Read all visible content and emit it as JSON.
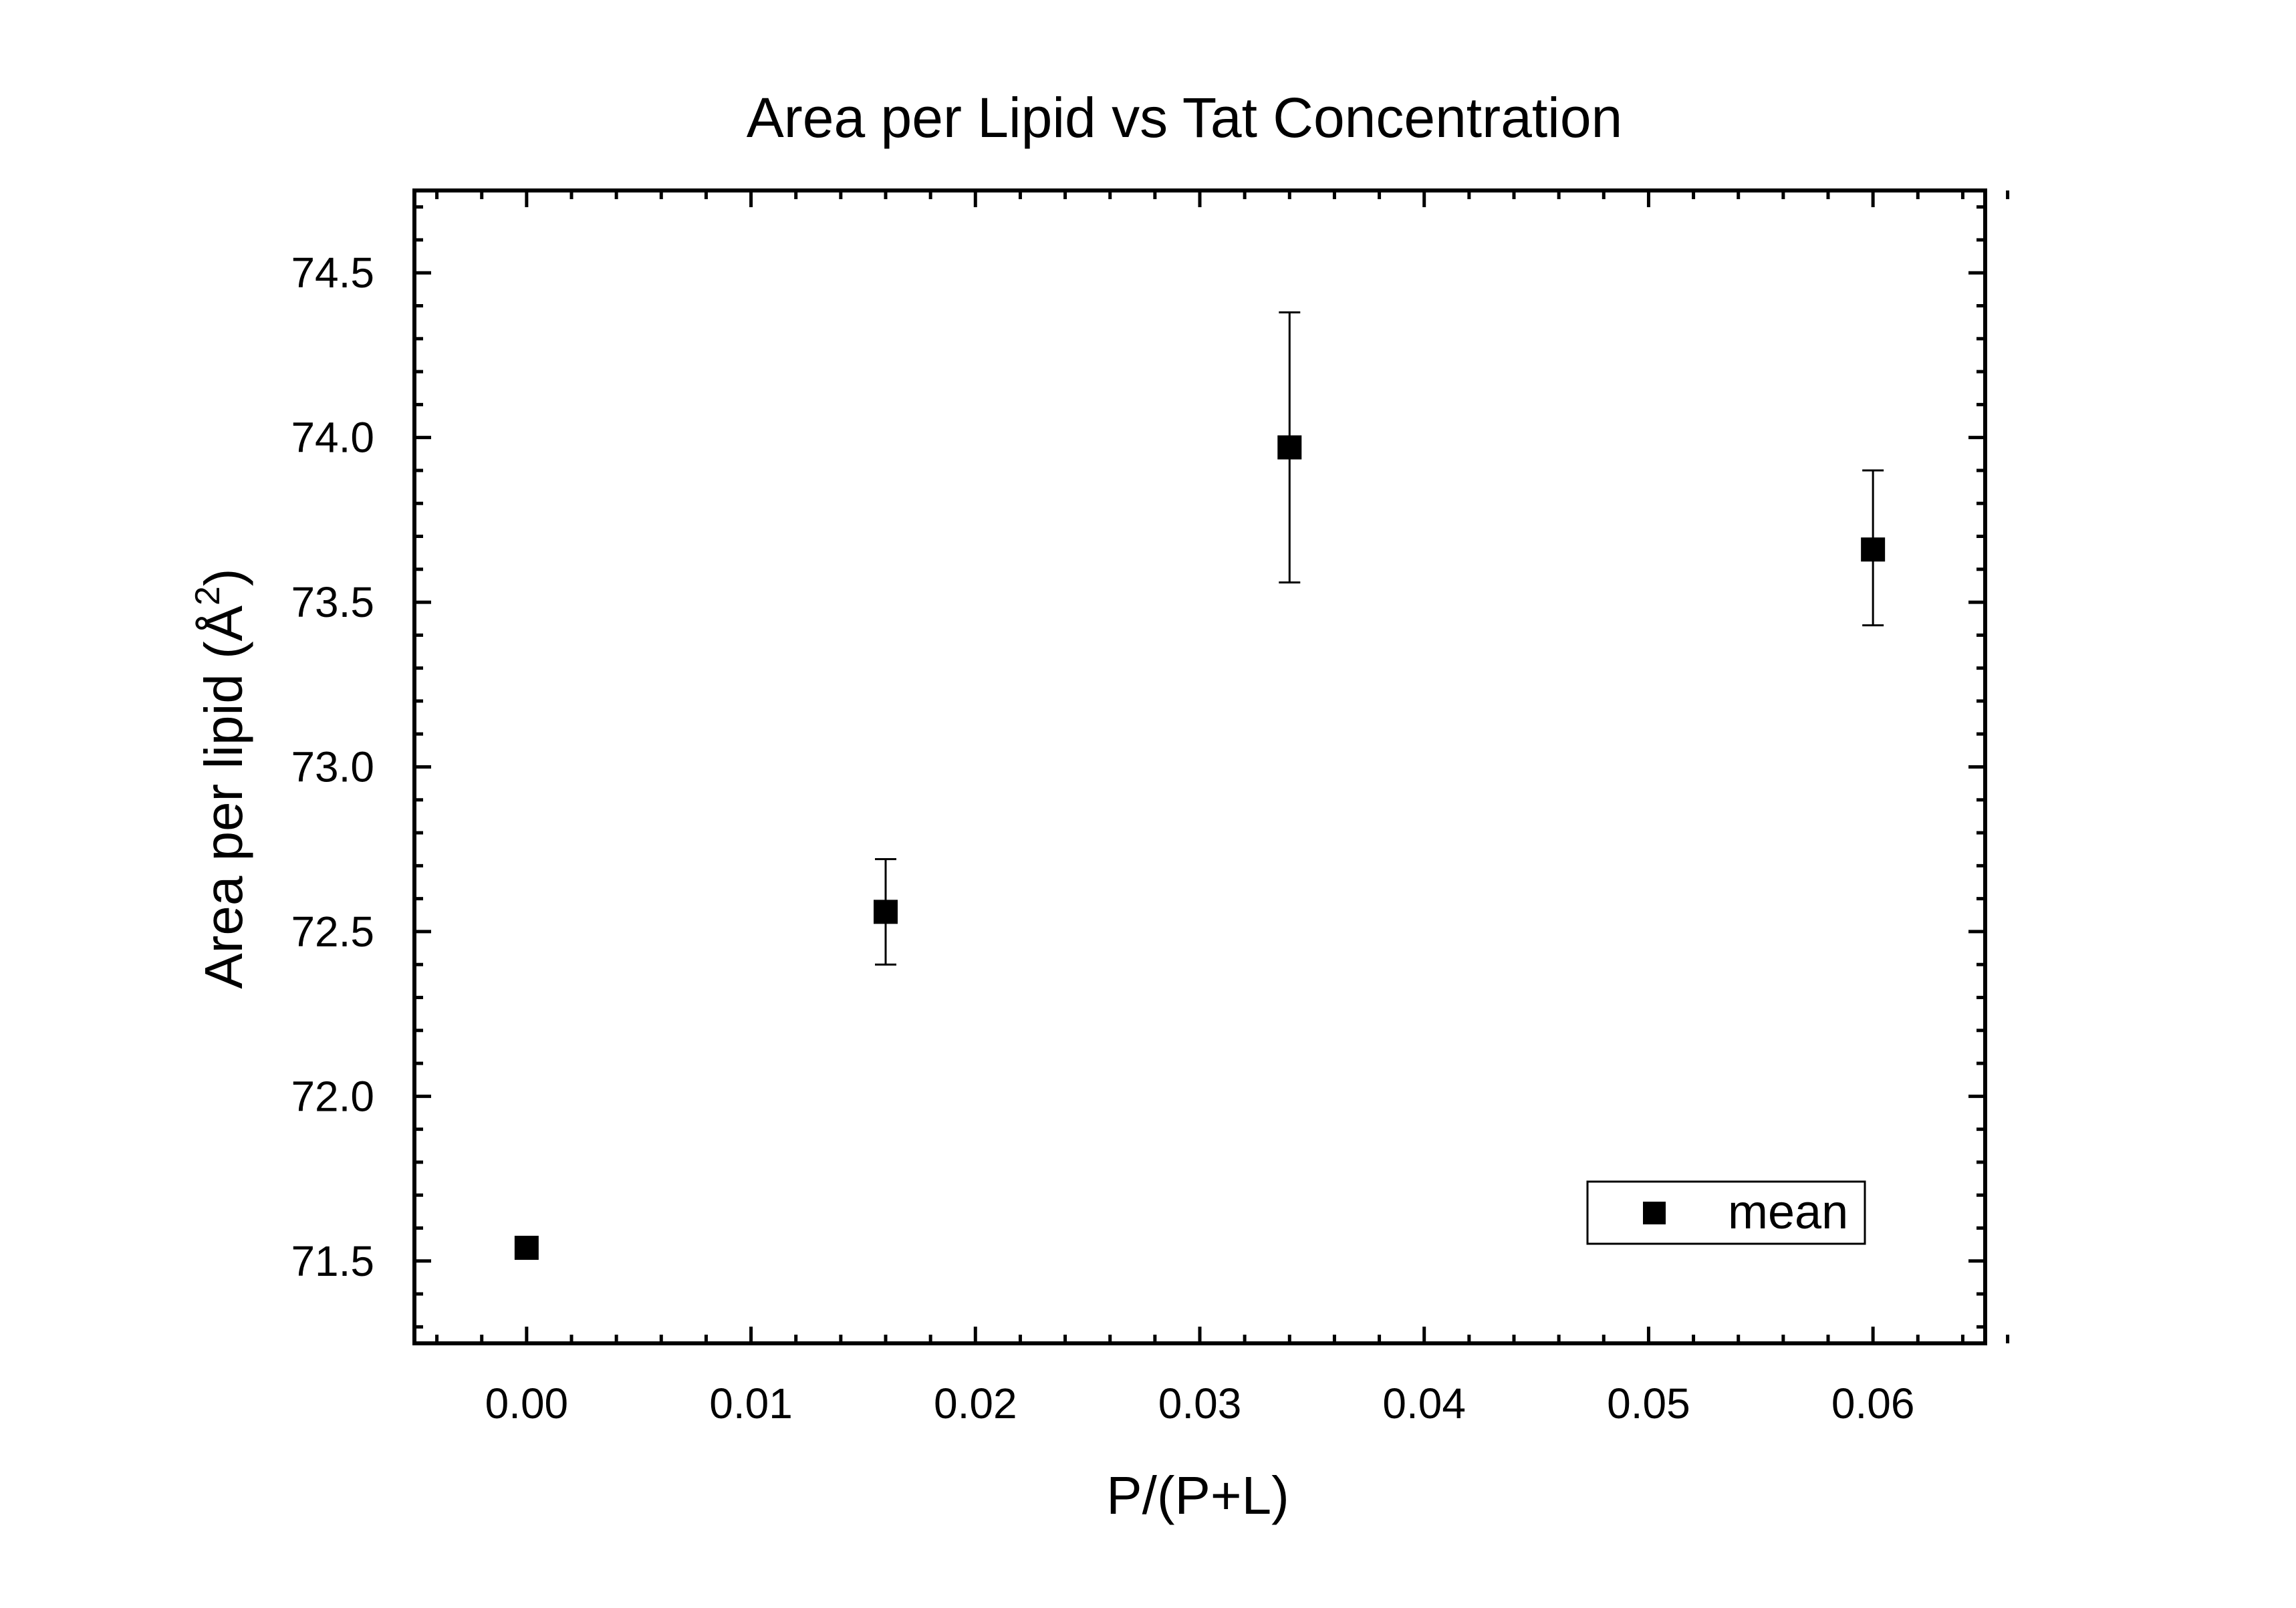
{
  "chart_data": {
    "type": "scatter",
    "title": "Area per Lipid vs Tat Concentration",
    "xlabel": "P/(P+L)",
    "ylabel_main": "Area per lipid (",
    "ylabel_unit": "Å",
    "ylabel_sup": "2",
    "ylabel_close": ")",
    "xlim": [
      -0.005,
      0.065
    ],
    "ylim": [
      71.25,
      74.75
    ],
    "xticks": [
      "0.00",
      "0.01",
      "0.02",
      "0.03",
      "0.04",
      "0.05",
      "0.06"
    ],
    "yticks": [
      "71.5",
      "72.0",
      "72.5",
      "73.0",
      "73.5",
      "74.0",
      "74.5"
    ],
    "grid": false,
    "legend": {
      "placement": "bottom-right",
      "entries": [
        "mean"
      ]
    },
    "series": [
      {
        "name": "mean",
        "marker": "square",
        "color": "#000000",
        "points": [
          {
            "x": 0.0,
            "y": 71.54,
            "yerr_low": 71.54,
            "yerr_high": 71.54
          },
          {
            "x": 0.016,
            "y": 72.56,
            "yerr_low": 72.4,
            "yerr_high": 72.72
          },
          {
            "x": 0.034,
            "y": 73.97,
            "yerr_low": 73.56,
            "yerr_high": 74.38
          },
          {
            "x": 0.06,
            "y": 73.66,
            "yerr_low": 73.43,
            "yerr_high": 73.9
          }
        ]
      }
    ]
  }
}
